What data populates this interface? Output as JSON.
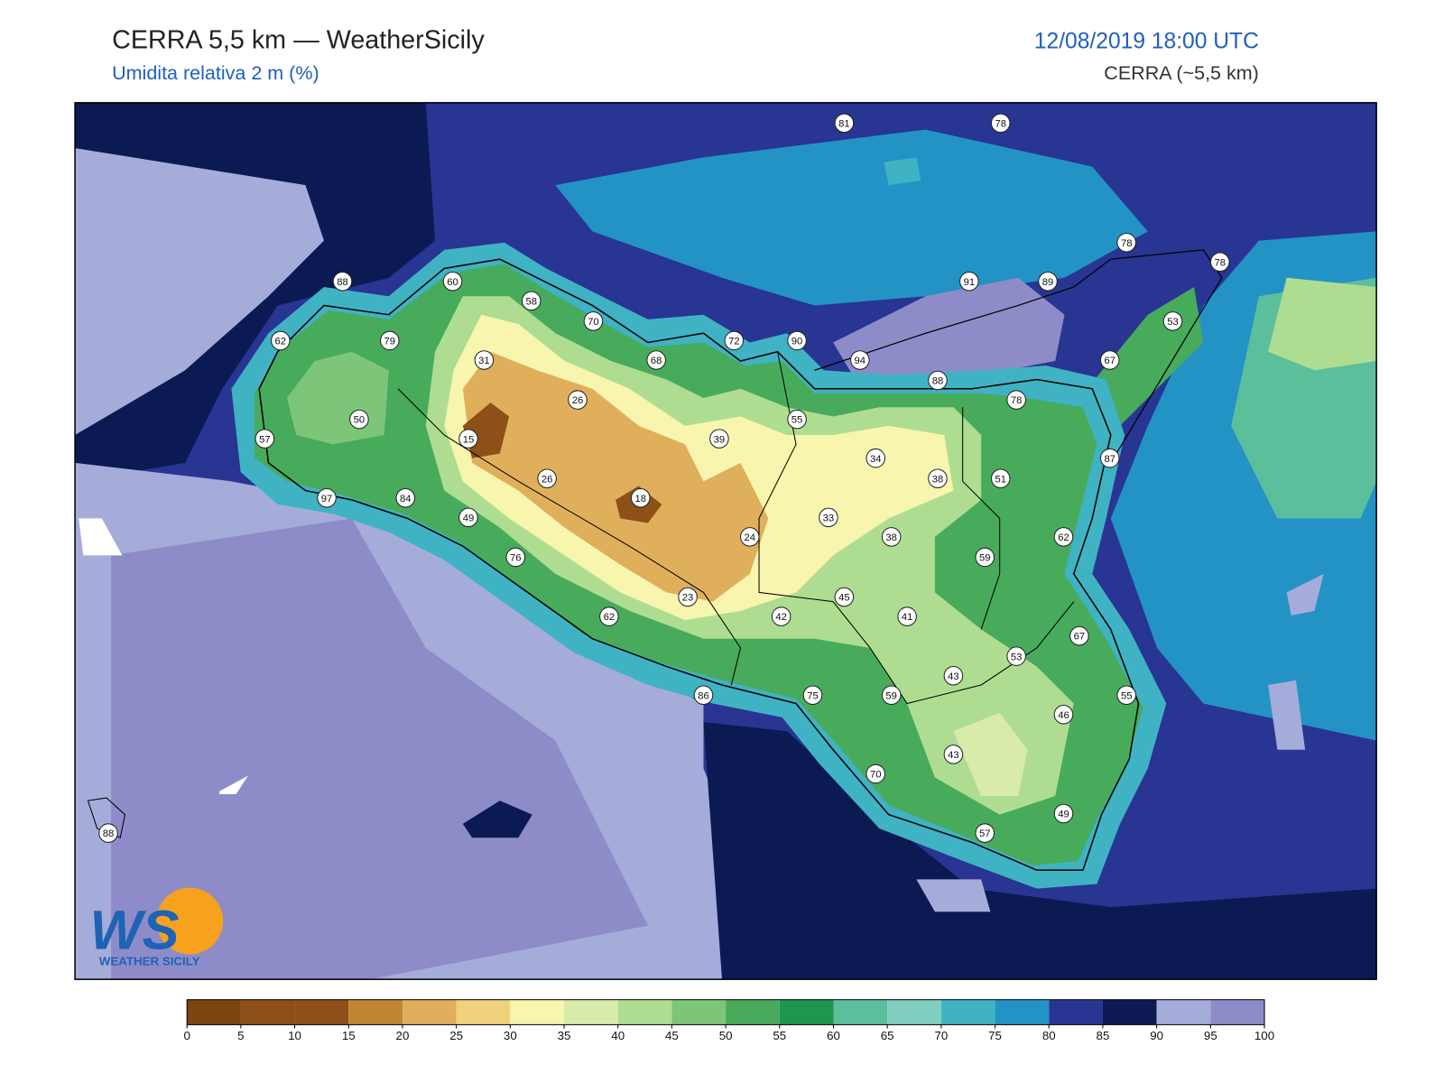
{
  "header": {
    "title": "CERRA 5,5 km — WeatherSicily",
    "subtitle": "Umidita relativa 2 m (%)",
    "date": "12/08/2019 18:00 UTC",
    "model": "CERRA (~5,5 km)"
  },
  "map": {
    "stations": [
      81,
      78,
      88,
      60,
      58,
      70,
      72,
      90,
      91,
      89,
      78,
      78,
      53,
      62,
      79,
      68,
      94,
      88,
      67,
      31,
      26,
      78,
      50,
      57,
      15,
      39,
      55,
      34,
      38,
      51,
      87,
      97,
      84,
      26,
      18,
      33,
      49,
      24,
      38,
      62,
      76,
      59,
      45,
      23,
      42,
      41,
      62,
      67,
      53,
      43,
      86,
      75,
      59,
      55,
      46,
      43,
      70,
      49,
      57,
      88
    ],
    "logo": {
      "mark": "WS",
      "name": "WEATHER SICILY"
    },
    "colorbar": {
      "ticks": [
        0,
        5,
        10,
        15,
        20,
        25,
        30,
        35,
        40,
        45,
        50,
        55,
        60,
        65,
        70,
        75,
        80,
        85,
        90,
        95,
        100
      ],
      "colors": [
        "#7a4510",
        "#8d5018",
        "#8d5018",
        "#c08530",
        "#e0af5c",
        "#f0d27c",
        "#f7f5ae",
        "#d8ebaa",
        "#aedd92",
        "#7dc679",
        "#48ab5c",
        "#1e9650",
        "#5bbf9c",
        "#80cfc0",
        "#3fb3c4",
        "#2393c6",
        "#283593",
        "#0b1a52",
        "#a6acd9",
        "#8e8cc8"
      ]
    }
  }
}
